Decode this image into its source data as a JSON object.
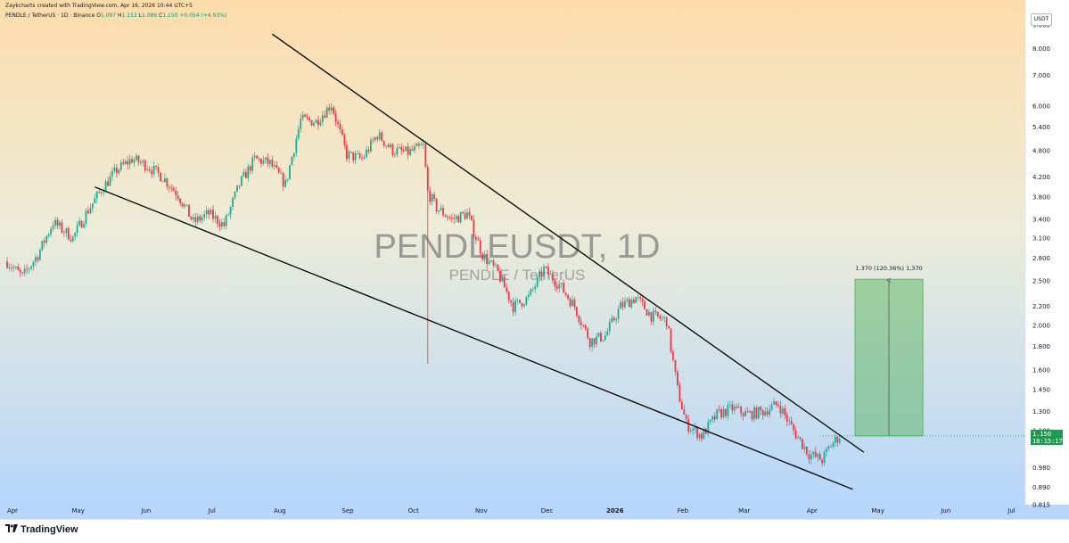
{
  "header": {
    "created_by": "Zaykcharts created with TradingView.com, Apr 16, 2026 10:44 UTC+5",
    "symbol_line": "PENDLE / TetherUS · 1D · Binance",
    "ohlc": {
      "o_label": "O",
      "o": "1.097",
      "h_label": "H",
      "h": "1.153",
      "l_label": "L",
      "l": "1.086",
      "c_label": "C",
      "c": "1.150",
      "change": "+0.054 (+4.93%)"
    }
  },
  "currency_badge": "USDT",
  "watermark": {
    "title": "PENDLEUSDT, 1D",
    "subtitle": "PENDLE / TetherUS"
  },
  "current_price": {
    "value": "1.150",
    "countdown": "18:15:17",
    "color": "#1f9b4f"
  },
  "footer": {
    "brand": "TradingView",
    "brand_icon": "tradingview-logo-icon"
  },
  "colors": {
    "up": "#22ab94",
    "down": "#f23645",
    "target_box": "#4caf50",
    "bg_top": "#fddcaa",
    "bg_bottom": "#b6d6fb"
  },
  "chart_data": {
    "type": "candlestick",
    "y_scale": "log",
    "ylim": [
      0.815,
      10.2
    ],
    "x_range": [
      "2025-04-01",
      "2026-07-13"
    ],
    "y_ticks": [
      "9.000",
      "8.000",
      "7.000",
      "6.000",
      "5.400",
      "4.800",
      "4.200",
      "3.800",
      "3.400",
      "3.100",
      "2.800",
      "2.500",
      "2.200",
      "2.000",
      "1.800",
      "1.600",
      "1.450",
      "1.300",
      "1.180",
      "0.980",
      "0.890",
      "0.815"
    ],
    "x_ticks": [
      {
        "label": "Apr",
        "date": "2025-04-01"
      },
      {
        "label": "May",
        "date": "2025-05-01"
      },
      {
        "label": "Jun",
        "date": "2025-06-01"
      },
      {
        "label": "Jul",
        "date": "2025-07-01"
      },
      {
        "label": "Aug",
        "date": "2025-08-01"
      },
      {
        "label": "Sep",
        "date": "2025-09-01"
      },
      {
        "label": "Oct",
        "date": "2025-10-01"
      },
      {
        "label": "Nov",
        "date": "2025-11-01"
      },
      {
        "label": "Dec",
        "date": "2025-12-01"
      },
      {
        "label": "2026",
        "date": "2026-01-01"
      },
      {
        "label": "Feb",
        "date": "2026-02-01"
      },
      {
        "label": "Mar",
        "date": "2026-03-01"
      },
      {
        "label": "Apr",
        "date": "2026-04-01"
      },
      {
        "label": "May",
        "date": "2026-05-01"
      },
      {
        "label": "Jun",
        "date": "2026-06-01"
      },
      {
        "label": "Jul",
        "date": "2026-07-01"
      }
    ],
    "price_path": [
      [
        "2025-04-01",
        2.75
      ],
      [
        "2025-04-08",
        2.55
      ],
      [
        "2025-04-15",
        2.85
      ],
      [
        "2025-04-22",
        3.35
      ],
      [
        "2025-05-01",
        3.1
      ],
      [
        "2025-05-07",
        3.5
      ],
      [
        "2025-05-14",
        3.95
      ],
      [
        "2025-05-21",
        4.35
      ],
      [
        "2025-05-28",
        4.6
      ],
      [
        "2025-06-04",
        4.45
      ],
      [
        "2025-06-11",
        4.2
      ],
      [
        "2025-06-18",
        3.85
      ],
      [
        "2025-06-25",
        3.35
      ],
      [
        "2025-07-02",
        3.5
      ],
      [
        "2025-07-09",
        3.3
      ],
      [
        "2025-07-16",
        4.05
      ],
      [
        "2025-07-23",
        4.6
      ],
      [
        "2025-07-30",
        4.5
      ],
      [
        "2025-08-06",
        4.05
      ],
      [
        "2025-08-13",
        5.6
      ],
      [
        "2025-08-20",
        5.55
      ],
      [
        "2025-08-27",
        6.05
      ],
      [
        "2025-09-03",
        4.7
      ],
      [
        "2025-09-10",
        4.6
      ],
      [
        "2025-09-17",
        5.2
      ],
      [
        "2025-09-24",
        4.8
      ],
      [
        "2025-10-01",
        4.75
      ],
      [
        "2025-10-08",
        4.9
      ],
      [
        "2025-10-10",
        3.9
      ],
      [
        "2025-10-14",
        3.6
      ],
      [
        "2025-10-21",
        3.4
      ],
      [
        "2025-10-28",
        3.5
      ],
      [
        "2025-11-04",
        2.85
      ],
      [
        "2025-11-11",
        2.6
      ],
      [
        "2025-11-18",
        2.2
      ],
      [
        "2025-11-25",
        2.3
      ],
      [
        "2025-12-02",
        2.65
      ],
      [
        "2025-12-09",
        2.45
      ],
      [
        "2025-12-16",
        2.2
      ],
      [
        "2025-12-23",
        1.85
      ],
      [
        "2025-12-30",
        1.9
      ],
      [
        "2026-01-06",
        2.2
      ],
      [
        "2026-01-13",
        2.3
      ],
      [
        "2026-01-20",
        2.1
      ],
      [
        "2026-01-27",
        2.05
      ],
      [
        "2026-02-01",
        1.45
      ],
      [
        "2026-02-05",
        1.22
      ],
      [
        "2026-02-12",
        1.15
      ],
      [
        "2026-02-19",
        1.28
      ],
      [
        "2026-02-26",
        1.32
      ],
      [
        "2026-03-05",
        1.28
      ],
      [
        "2026-03-12",
        1.3
      ],
      [
        "2026-03-19",
        1.35
      ],
      [
        "2026-03-26",
        1.18
      ],
      [
        "2026-04-02",
        1.05
      ],
      [
        "2026-04-08",
        1.02
      ],
      [
        "2026-04-12",
        1.1
      ],
      [
        "2026-04-16",
        1.15
      ]
    ],
    "annotations": {
      "upper_trendline": [
        [
          "2025-07-31",
          8.6
        ],
        [
          "2026-04-27",
          1.06
        ]
      ],
      "lower_trendline": [
        [
          "2025-05-11",
          4.0
        ],
        [
          "2026-04-22",
          0.88
        ]
      ],
      "target_box": {
        "x1": "2026-04-23",
        "x2": "2026-05-24",
        "y_bottom": 1.15,
        "y_top": 2.52
      },
      "target_label": "1.370 (120.36%) 1,370"
    }
  }
}
